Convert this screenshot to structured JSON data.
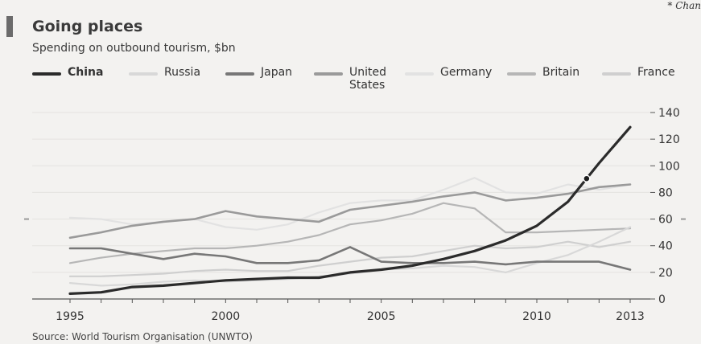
{
  "corner_note": "* Chan",
  "chart_data": {
    "type": "line",
    "title": "Going places",
    "subtitle": "Spending on outbound tourism, $bn",
    "source": "Source: World Tourism Organisation (UNWTO)",
    "x": [
      1995,
      1996,
      1997,
      1998,
      1999,
      2000,
      2001,
      2002,
      2003,
      2004,
      2005,
      2006,
      2007,
      2008,
      2009,
      2010,
      2011,
      2012,
      2013
    ],
    "x_ticks": [
      "1995",
      "2000",
      "2005",
      "2010",
      "2013"
    ],
    "x_tick_values": [
      1995,
      2000,
      2005,
      2010,
      2013
    ],
    "y_ticks": [
      "0",
      "20",
      "40",
      "60",
      "80",
      "100",
      "120",
      "140"
    ],
    "y_tick_values": [
      0,
      20,
      40,
      60,
      80,
      100,
      120,
      140
    ],
    "ylim": [
      0,
      140
    ],
    "legend_position": "top",
    "series": [
      {
        "name": "China",
        "color": "#2b2b2b",
        "width": 3.2,
        "values": [
          4,
          5,
          9,
          10,
          12,
          14,
          15,
          16,
          16,
          20,
          22,
          25,
          30,
          36,
          44,
          55,
          73,
          102,
          129
        ]
      },
      {
        "name": "Russia",
        "color": "#d8d8d8",
        "width": 2.2,
        "values": [
          12,
          10,
          11,
          13,
          14,
          13,
          14,
          15,
          17,
          19,
          22,
          23,
          25,
          24,
          20,
          27,
          33,
          43,
          54
        ]
      },
      {
        "name": "Japan",
        "color": "#777777",
        "width": 2.6,
        "values": [
          38,
          38,
          34,
          30,
          34,
          32,
          27,
          27,
          29,
          39,
          28,
          27,
          27,
          28,
          26,
          28,
          28,
          28,
          22
        ]
      },
      {
        "name": "United States",
        "color": "#9a9a9a",
        "width": 2.6,
        "values": [
          46,
          50,
          55,
          58,
          60,
          66,
          62,
          60,
          58,
          67,
          70,
          73,
          77,
          80,
          74,
          76,
          79,
          84,
          86
        ]
      },
      {
        "name": "Germany",
        "color": "#e2e2e2",
        "width": 2.2,
        "values": [
          61,
          60,
          56,
          58,
          60,
          54,
          52,
          56,
          65,
          72,
          74,
          74,
          82,
          91,
          80,
          79,
          86,
          82,
          86
        ]
      },
      {
        "name": "Britain",
        "color": "#b6b6b6",
        "width": 2.2,
        "values": [
          27,
          31,
          34,
          36,
          38,
          38,
          40,
          43,
          48,
          56,
          59,
          64,
          72,
          68,
          50,
          50,
          51,
          52,
          53
        ]
      },
      {
        "name": "France",
        "color": "#cfcfcf",
        "width": 2.2,
        "values": [
          17,
          17,
          18,
          19,
          21,
          22,
          21,
          21,
          25,
          28,
          31,
          32,
          36,
          40,
          38,
          39,
          43,
          39,
          43
        ]
      }
    ]
  }
}
